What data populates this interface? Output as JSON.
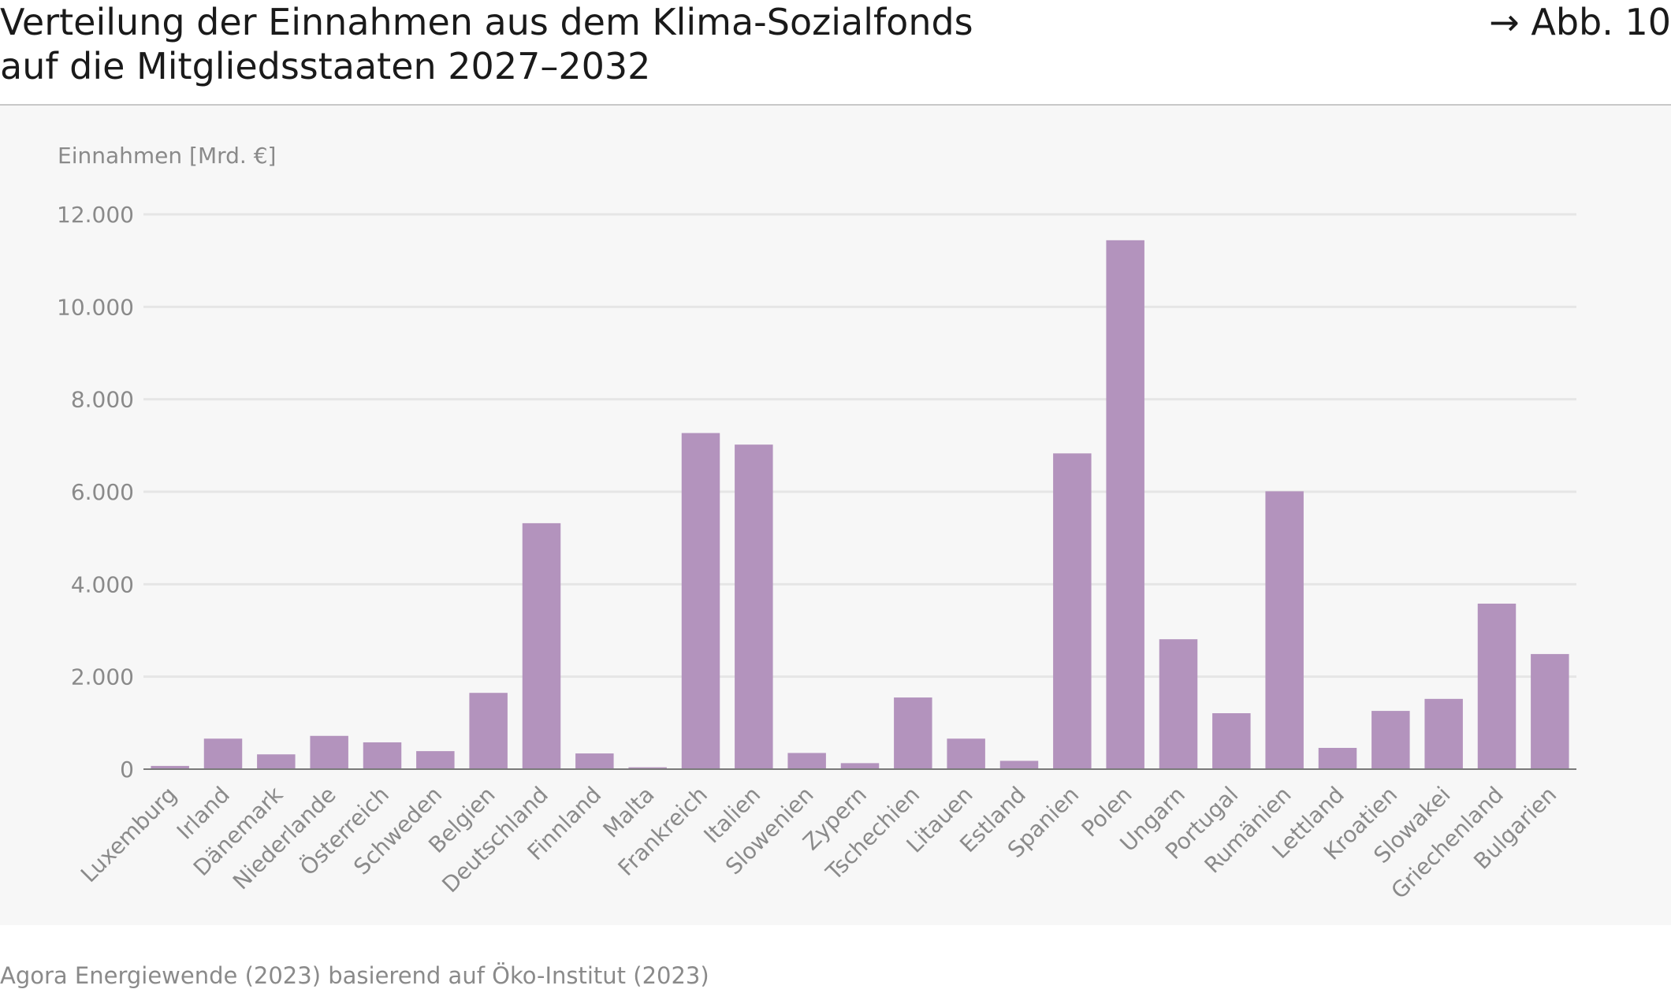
{
  "header": {
    "title_line1": "Verteilung der Einnahmen aus dem Klima-Sozialfonds",
    "title_line2": "auf die Mitgliedsstaaten 2027–2032",
    "figure_ref": "→ Abb. 10"
  },
  "footer": {
    "source": "Agora Energiewende (2023) basierend auf Öko-Institut (2023)"
  },
  "colors": {
    "bar": "#b393bd",
    "grid": "#e6e6e6",
    "axis": "#7a7a7a",
    "tick_text": "#8a8a8a",
    "panel_bg": "#f7f7f7"
  },
  "chart_data": {
    "type": "bar",
    "title": "",
    "xlabel": "",
    "ylabel": "Einnahmen [Mrd. €]",
    "ylim": [
      0,
      12000
    ],
    "yticks": [
      0,
      2000,
      4000,
      6000,
      8000,
      10000,
      12000
    ],
    "ytick_labels": [
      "0",
      "2.000",
      "4.000",
      "6.000",
      "8.000",
      "10.000",
      "12.000"
    ],
    "grid": true,
    "legend": "none",
    "categories": [
      "Luxemburg",
      "Irland",
      "Dänemark",
      "Niederlande",
      "Österreich",
      "Schweden",
      "Belgien",
      "Deutschland",
      "Finnland",
      "Malta",
      "Frankreich",
      "Italien",
      "Slowenien",
      "Zypern",
      "Tschechien",
      "Litauen",
      "Estland",
      "Spanien",
      "Polen",
      "Ungarn",
      "Portugal",
      "Rumänien",
      "Lettland",
      "Kroatien",
      "Slowakei",
      "Griechenland",
      "Bulgarien"
    ],
    "values": [
      70,
      660,
      320,
      720,
      580,
      390,
      1650,
      5320,
      340,
      40,
      7270,
      7020,
      350,
      130,
      1550,
      660,
      180,
      6830,
      11440,
      2810,
      1210,
      6010,
      460,
      1260,
      1520,
      3580,
      2490
    ]
  }
}
